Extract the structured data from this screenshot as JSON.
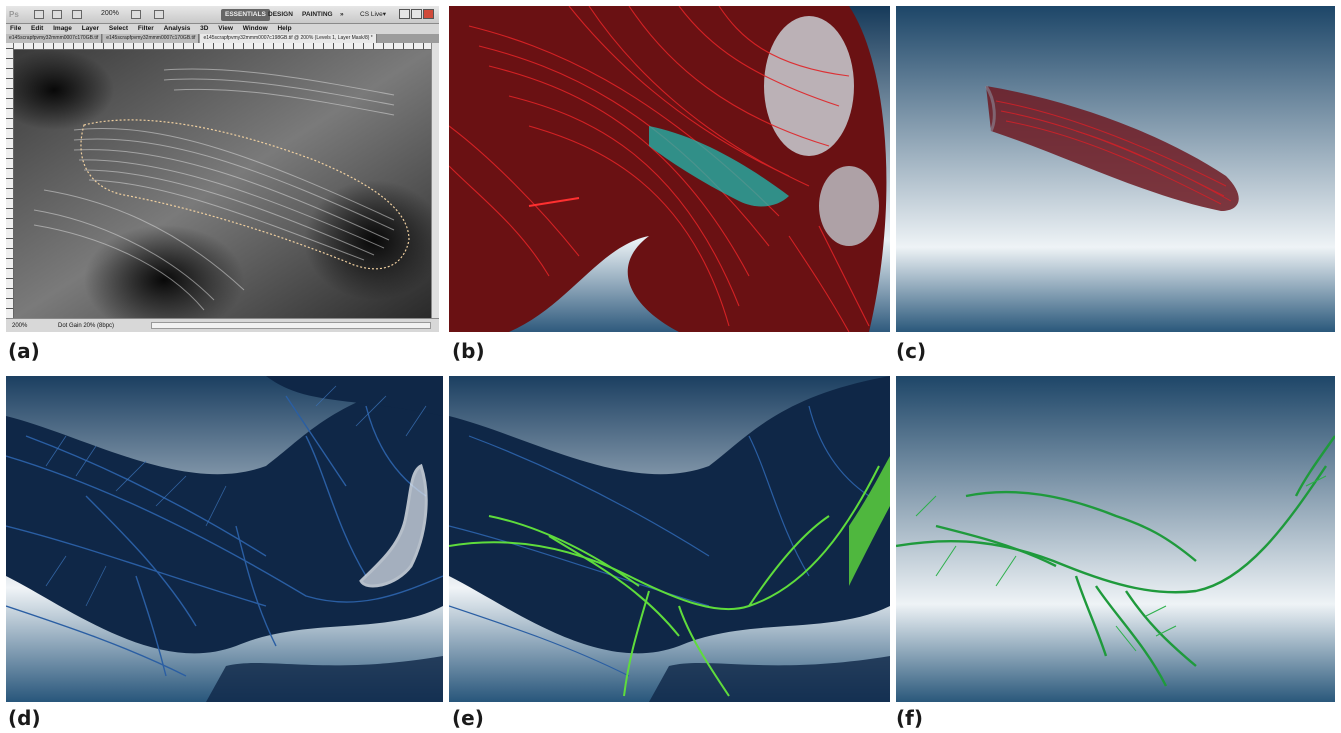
{
  "captions": [
    "(a)",
    "(b)",
    "(c)",
    "(d)",
    "(e)",
    "(f)"
  ],
  "photoshop": {
    "logo": "Ps",
    "zoom": "200%",
    "workspaces": [
      "ESSENTIALS",
      "DESIGN",
      "PAINTING",
      "»"
    ],
    "cs_live": "CS Live▾",
    "menu": [
      "File",
      "Edit",
      "Image",
      "Layer",
      "Select",
      "Filter",
      "Analysis",
      "3D",
      "View",
      "Window",
      "Help"
    ],
    "tabs": [
      "e145scrapfpvmy32mmm0007c170GB.tif",
      "e145scrapfpvmy32mmm0007c170GB.tif",
      "e145scrapfpvmy32mmm0007c198GB.tif @ 200% (Levels 1, Layer Mask/8) *"
    ],
    "status_zoom": "200%",
    "status_doc": "Dot Gain 20% (8bpc)"
  },
  "colors": {
    "muscle_red": "#c8161a",
    "selection_cyan": "#1fb9b0",
    "nerve_blue": "#2a4f8c",
    "nerve_green": "#3fbf3a",
    "bg_top": "#1e4a6e",
    "bg_mid": "#e6eef3"
  }
}
